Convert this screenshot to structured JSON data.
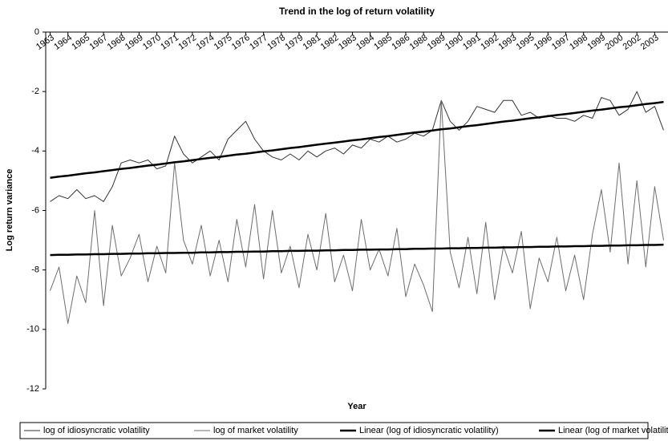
{
  "chart_data": {
    "type": "line",
    "title": "Trend in the log of return volatility",
    "x_label": "Year",
    "y_label": "Log return variance",
    "categories": [
      "1963",
      null,
      "1964",
      null,
      "1965",
      null,
      "1967",
      null,
      "1968",
      null,
      "1969",
      null,
      "1970",
      null,
      "1971",
      null,
      "1972",
      null,
      "1974",
      null,
      "1975",
      null,
      "1976",
      null,
      "1977",
      null,
      "1978",
      null,
      "1979",
      null,
      "1981",
      null,
      "1982",
      null,
      "1983",
      null,
      "1984",
      null,
      "1985",
      null,
      "1986",
      null,
      "1988",
      null,
      "1989",
      null,
      "1990",
      null,
      "1991",
      null,
      "1992",
      null,
      "1993",
      null,
      "1995",
      null,
      "1996",
      null,
      "1997",
      null,
      "1998",
      null,
      "1999",
      null,
      "2000",
      null,
      "2002",
      null,
      "2003",
      null
    ],
    "series": [
      {
        "name": "log of idiosyncratic volatility",
        "color": "#333333",
        "width": 1,
        "values": [
          -5.7,
          -5.5,
          -5.6,
          -5.3,
          -5.6,
          -5.5,
          -5.7,
          -5.2,
          -4.4,
          -4.3,
          -4.4,
          -4.3,
          -4.6,
          -4.5,
          -3.5,
          -4.1,
          -4.4,
          -4.2,
          -4.0,
          -4.3,
          -3.6,
          -3.3,
          -3.0,
          -3.6,
          -4.0,
          -4.2,
          -4.3,
          -4.1,
          -4.3,
          -4.0,
          -4.2,
          -4.0,
          -3.9,
          -4.1,
          -3.8,
          -3.9,
          -3.6,
          -3.7,
          -3.5,
          -3.7,
          -3.6,
          -3.4,
          -3.5,
          -3.3,
          -2.3,
          -3.0,
          -3.3,
          -3.0,
          -2.5,
          -2.6,
          -2.7,
          -2.3,
          -2.3,
          -2.8,
          -2.7,
          -2.9,
          -2.8,
          -2.9,
          -2.9,
          -3.0,
          -2.8,
          -2.9,
          -2.2,
          -2.3,
          -2.8,
          -2.6,
          -2.0,
          -2.7,
          -2.5,
          -3.3
        ]
      },
      {
        "name": "log of market volatility",
        "color": "#6e6e6e",
        "width": 1,
        "values": [
          -8.7,
          -7.9,
          -9.8,
          -8.2,
          -9.1,
          -6.0,
          -9.2,
          -6.5,
          -8.2,
          -7.6,
          -6.8,
          -8.4,
          -7.2,
          -8.1,
          -4.4,
          -7.0,
          -7.8,
          -6.5,
          -8.2,
          -7.0,
          -8.4,
          -6.3,
          -7.9,
          -5.8,
          -8.3,
          -6.0,
          -8.1,
          -7.2,
          -8.6,
          -6.8,
          -8.0,
          -6.1,
          -8.4,
          -7.5,
          -8.7,
          -6.3,
          -8.0,
          -7.3,
          -8.2,
          -6.6,
          -8.9,
          -7.8,
          -8.5,
          -9.4,
          -2.3,
          -7.4,
          -8.6,
          -6.9,
          -8.8,
          -6.4,
          -9.0,
          -7.2,
          -8.1,
          -6.7,
          -9.3,
          -7.6,
          -8.4,
          -6.9,
          -8.7,
          -7.5,
          -9.0,
          -6.8,
          -5.3,
          -7.4,
          -4.4,
          -7.8,
          -5.0,
          -7.9,
          -5.2,
          -7.0
        ]
      },
      {
        "name": "Linear (log of idiosyncratic volatility)",
        "color": "#000000",
        "width": 2.5,
        "values": [
          -4.9,
          -4.86,
          -4.83,
          -4.79,
          -4.75,
          -4.72,
          -4.68,
          -4.64,
          -4.6,
          -4.57,
          -4.53,
          -4.49,
          -4.46,
          -4.42,
          -4.38,
          -4.35,
          -4.31,
          -4.27,
          -4.23,
          -4.2,
          -4.16,
          -4.12,
          -4.09,
          -4.05,
          -4.01,
          -3.98,
          -3.94,
          -3.9,
          -3.87,
          -3.83,
          -3.79,
          -3.75,
          -3.72,
          -3.68,
          -3.64,
          -3.61,
          -3.57,
          -3.53,
          -3.5,
          -3.46,
          -3.42,
          -3.38,
          -3.35,
          -3.31,
          -3.27,
          -3.24,
          -3.2,
          -3.16,
          -3.13,
          -3.09,
          -3.05,
          -3.01,
          -2.98,
          -2.94,
          -2.9,
          -2.87,
          -2.83,
          -2.79,
          -2.76,
          -2.72,
          -2.68,
          -2.64,
          -2.61,
          -2.57,
          -2.53,
          -2.5,
          -2.46,
          -2.42,
          -2.39,
          -2.35
        ]
      },
      {
        "name": "Linear (log of market volatility)",
        "color": "#000000",
        "width": 2.5,
        "values": [
          -7.5,
          -7.49,
          -7.49,
          -7.48,
          -7.48,
          -7.47,
          -7.47,
          -7.46,
          -7.46,
          -7.45,
          -7.45,
          -7.44,
          -7.44,
          -7.43,
          -7.43,
          -7.42,
          -7.42,
          -7.41,
          -7.41,
          -7.4,
          -7.4,
          -7.39,
          -7.39,
          -7.38,
          -7.38,
          -7.37,
          -7.37,
          -7.36,
          -7.36,
          -7.35,
          -7.35,
          -7.34,
          -7.34,
          -7.33,
          -7.33,
          -7.32,
          -7.32,
          -7.31,
          -7.31,
          -7.3,
          -7.3,
          -7.29,
          -7.29,
          -7.28,
          -7.28,
          -7.27,
          -7.27,
          -7.26,
          -7.26,
          -7.25,
          -7.25,
          -7.24,
          -7.24,
          -7.23,
          -7.23,
          -7.22,
          -7.22,
          -7.21,
          -7.21,
          -7.2,
          -7.2,
          -7.19,
          -7.19,
          -7.18,
          -7.18,
          -7.17,
          -7.17,
          -7.16,
          -7.16,
          -7.15
        ]
      }
    ],
    "ylim": [
      -12,
      0
    ],
    "yticks": [
      0,
      -2,
      -4,
      -6,
      -8,
      -10,
      -12
    ],
    "grid": false,
    "legend": "bottom"
  }
}
